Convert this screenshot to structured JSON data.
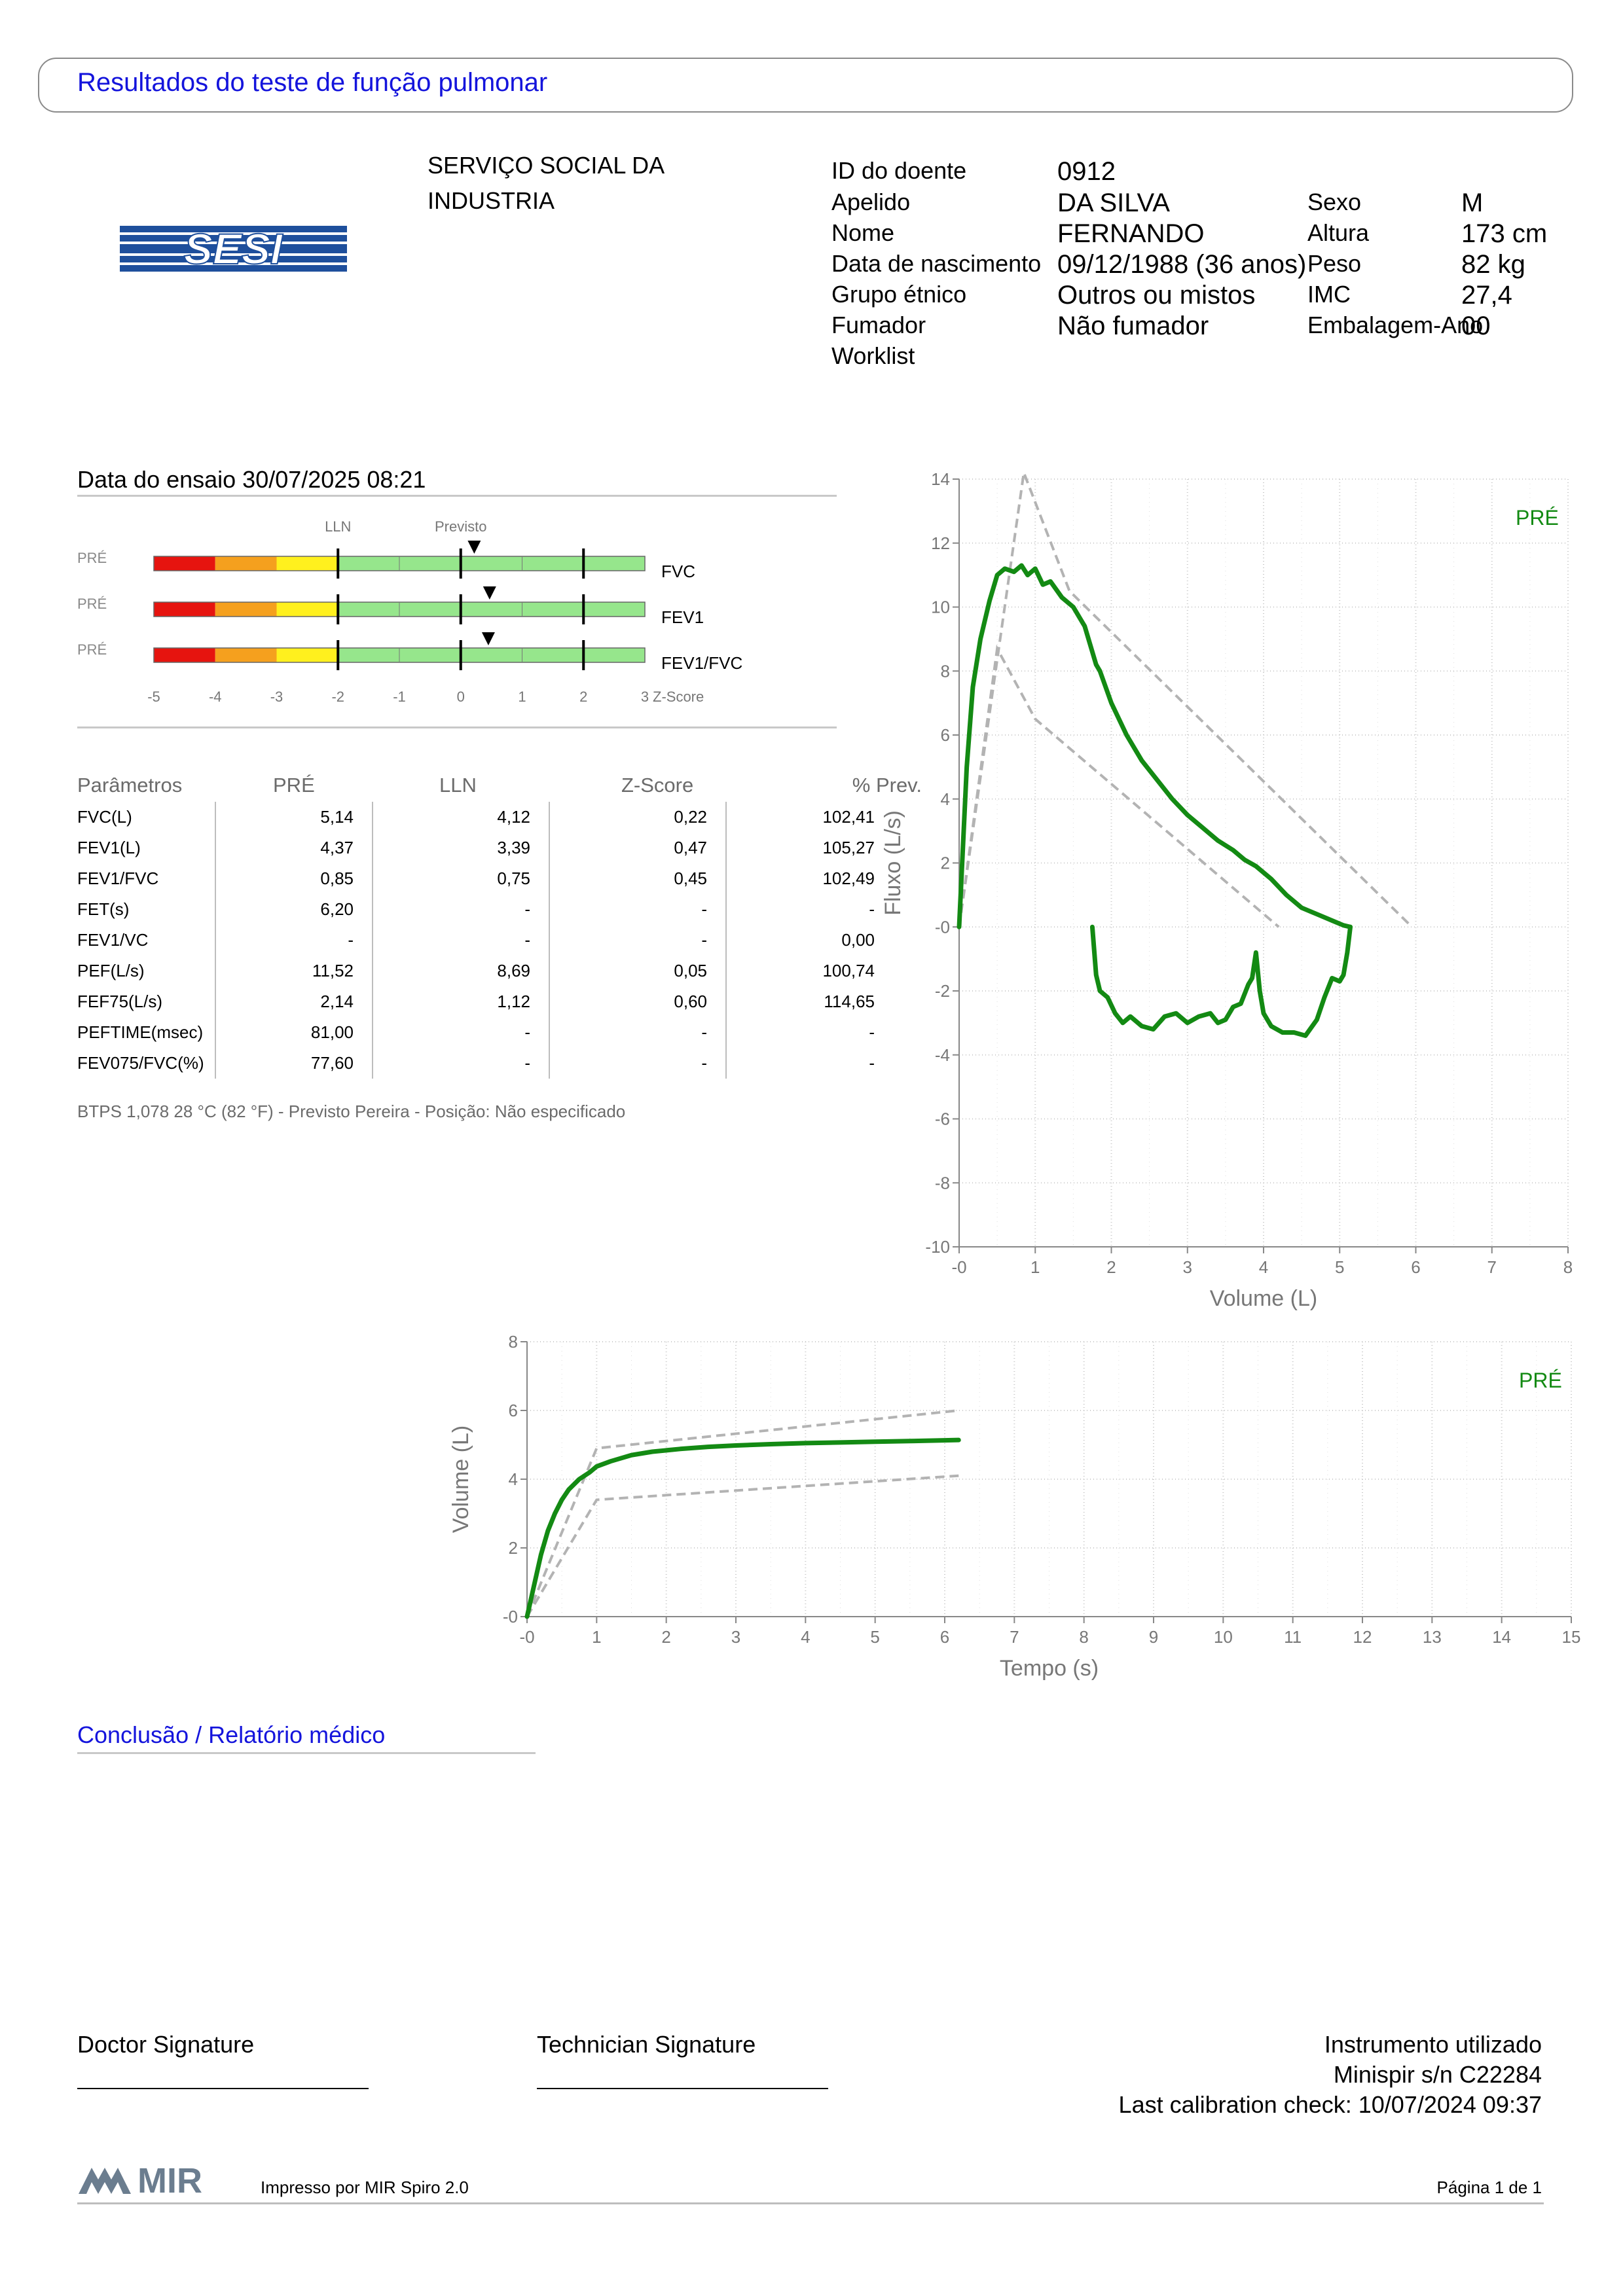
{
  "header": {
    "title": "Resultados do teste de função pulmonar"
  },
  "logo": {
    "text": "SESI",
    "color": "#1e4f9c"
  },
  "institution": {
    "line1": "SERVIÇO SOCIAL DA",
    "line2": "INDUSTRIA"
  },
  "patient": {
    "id_label": "ID do doente",
    "id": "0912",
    "surname_label": "Apelido",
    "surname": "DA SILVA",
    "name_label": "Nome",
    "name": "FERNANDO",
    "dob_label": "Data de nascimento",
    "dob": "09/12/1988 (36 anos)",
    "ethnic_label": "Grupo étnico",
    "ethnic": "Outros ou mistos",
    "smoker_label": "Fumador",
    "smoker": "Não fumador",
    "worklist_label": "Worklist",
    "sex_label": "Sexo",
    "sex": "M",
    "height_label": "Altura",
    "height": "173 cm",
    "weight_label": "Peso",
    "weight": "82 kg",
    "bmi_label": "IMC",
    "bmi": "27,4",
    "pack_label": "Embalagem-Ano",
    "pack": "00"
  },
  "test": {
    "date_line": "Data do ensaio 30/07/2025 08:21"
  },
  "zscore_panel": {
    "lln_label": "LLN",
    "predicted_label": "Previsto",
    "row_prefix": "PRÉ",
    "rows": [
      {
        "name": "FVC",
        "z": 0.22
      },
      {
        "name": "FEV1",
        "z": 0.47
      },
      {
        "name": "FEV1/FVC",
        "z": 0.45
      }
    ],
    "axis_ticks": [
      "-5",
      "-4",
      "-3",
      "-2",
      "-1",
      "0",
      "1",
      "2",
      "3"
    ],
    "axis_label": "Z-Score",
    "zone_colors": [
      "#e6140f",
      "#f5a01e",
      "#fff01e",
      "#96e68c"
    ]
  },
  "table": {
    "headers": [
      "Parâmetros",
      "PRÉ",
      "LLN",
      "Z-Score",
      "% Prev."
    ],
    "rows": [
      [
        "FVC(L)",
        "5,14",
        "4,12",
        "0,22",
        "102,41"
      ],
      [
        "FEV1(L)",
        "4,37",
        "3,39",
        "0,47",
        "105,27"
      ],
      [
        "FEV1/FVC",
        "0,85",
        "0,75",
        "0,45",
        "102,49"
      ],
      [
        "FET(s)",
        "6,20",
        "-",
        "-",
        "-"
      ],
      [
        "FEV1/VC",
        "-",
        "-",
        "-",
        "0,00"
      ],
      [
        "PEF(L/s)",
        "11,52",
        "8,69",
        "0,05",
        "100,74"
      ],
      [
        "FEF75(L/s)",
        "2,14",
        "1,12",
        "0,60",
        "114,65"
      ],
      [
        "PEFTIME(msec)",
        "81,00",
        "-",
        "-",
        "-"
      ],
      [
        "FEV075/FVC(%)",
        "77,60",
        "-",
        "-",
        "-"
      ]
    ],
    "footnote": "BTPS 1,078 28 °C (82 °F) - Previsto Pereira - Posição: Não especificado"
  },
  "chart_data": [
    {
      "type": "line",
      "title": "",
      "xlabel": "Volume (L)",
      "ylabel": "Fluxo (L/s)",
      "xlim": [
        0,
        8
      ],
      "ylim": [
        -10,
        14
      ],
      "x_ticks": [
        "-0",
        "1",
        "2",
        "3",
        "4",
        "5",
        "6",
        "7",
        "8"
      ],
      "y_ticks": [
        "14",
        "12",
        "10",
        "8",
        "6",
        "4",
        "2",
        "-0",
        "-2",
        "-4",
        "-6",
        "-8",
        "-10"
      ],
      "legend": "PRÉ",
      "series_color": "#138a13",
      "series": [
        {
          "name": "PRÉ",
          "x": [
            0,
            0.05,
            0.1,
            0.18,
            0.28,
            0.4,
            0.5,
            0.6,
            0.72,
            0.82,
            0.9,
            1.0,
            1.1,
            1.2,
            1.35,
            1.5,
            1.65,
            1.8,
            1.85,
            2.0,
            2.2,
            2.4,
            2.6,
            2.8,
            3.0,
            3.2,
            3.4,
            3.6,
            3.75,
            3.9,
            4.1,
            4.3,
            4.5,
            4.7,
            4.9,
            5.05,
            5.14
          ],
          "y": [
            0,
            2.5,
            5,
            7.5,
            9.0,
            10.2,
            11.0,
            11.2,
            11.1,
            11.3,
            11.0,
            11.2,
            10.7,
            10.8,
            10.3,
            10.0,
            9.4,
            8.2,
            8.0,
            7.0,
            6.0,
            5.2,
            4.6,
            4.0,
            3.5,
            3.1,
            2.7,
            2.4,
            2.1,
            1.9,
            1.5,
            1.0,
            0.6,
            0.4,
            0.2,
            0.05,
            0
          ]
        },
        {
          "name": "PRÉ expiration",
          "x": [
            5.14,
            5.1,
            5.05,
            5.0,
            4.9,
            4.8,
            4.7,
            4.55,
            4.4,
            4.25,
            4.1,
            4.0,
            3.95,
            3.9,
            3.85,
            3.8,
            3.7,
            3.6,
            3.5,
            3.4,
            3.3,
            3.15,
            3.0,
            2.85,
            2.7,
            2.55,
            2.4,
            2.25,
            2.15,
            2.05,
            1.95,
            1.85,
            1.8,
            1.75
          ],
          "y": [
            0,
            -0.8,
            -1.5,
            -1.7,
            -1.6,
            -2.2,
            -2.9,
            -3.4,
            -3.3,
            -3.3,
            -3.1,
            -2.7,
            -2.0,
            -0.8,
            -1.6,
            -1.8,
            -2.4,
            -2.5,
            -2.9,
            -3.0,
            -2.7,
            -2.8,
            -3.0,
            -2.7,
            -2.8,
            -3.2,
            -3.1,
            -2.8,
            -3.0,
            -2.7,
            -2.2,
            -2.0,
            -1.5,
            0
          ]
        }
      ],
      "reference_upper": {
        "x": [
          0,
          0.85,
          1.45,
          5.95
        ],
        "y": [
          0,
          14.2,
          10.5,
          0
        ]
      },
      "reference_lower": {
        "x": [
          0,
          0.5,
          1.0,
          4.2
        ],
        "y": [
          0,
          8.7,
          6.5,
          0
        ]
      }
    },
    {
      "type": "line",
      "title": "",
      "xlabel": "Tempo (s)",
      "ylabel": "Volume (L)",
      "xlim": [
        0,
        15
      ],
      "ylim": [
        0,
        8
      ],
      "x_ticks": [
        "-0",
        "1",
        "2",
        "3",
        "4",
        "5",
        "6",
        "7",
        "8",
        "9",
        "10",
        "11",
        "12",
        "13",
        "14",
        "15"
      ],
      "y_ticks": [
        "8",
        "6",
        "4",
        "2",
        "-0"
      ],
      "legend": "PRÉ",
      "series_color": "#138a13",
      "series": [
        {
          "name": "PRÉ",
          "x": [
            0,
            0.1,
            0.2,
            0.3,
            0.4,
            0.5,
            0.6,
            0.75,
            0.9,
            1.0,
            1.2,
            1.5,
            1.8,
            2.2,
            2.6,
            3.0,
            3.5,
            4.0,
            4.5,
            5.0,
            5.5,
            6.0,
            6.2
          ],
          "y": [
            0,
            0.9,
            1.8,
            2.5,
            3.0,
            3.4,
            3.7,
            4.0,
            4.2,
            4.37,
            4.52,
            4.7,
            4.8,
            4.88,
            4.94,
            4.98,
            5.02,
            5.05,
            5.07,
            5.09,
            5.11,
            5.13,
            5.14
          ]
        }
      ],
      "reference_upper": {
        "x": [
          0,
          1.0,
          6.2
        ],
        "y": [
          0,
          4.9,
          6.0
        ]
      },
      "reference_lower": {
        "x": [
          0,
          1.0,
          6.2
        ],
        "y": [
          0,
          3.4,
          4.1
        ]
      }
    }
  ],
  "conclusion": {
    "title": "Conclusão / Relatório médico"
  },
  "signatures": {
    "doctor": "Doctor Signature",
    "technician": "Technician Signature",
    "instrument_title": "Instrumento utilizado",
    "instrument": "Minispir s/n C22284",
    "calibration": "Last calibration check: 10/07/2024 09:37"
  },
  "footer": {
    "brand": "MIR",
    "printed_by": "Impresso por MIR Spiro 2.0",
    "page": "Página 1 de 1"
  }
}
